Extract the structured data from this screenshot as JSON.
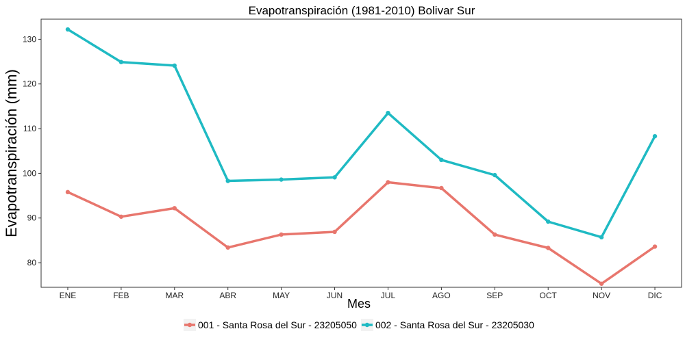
{
  "chart_data": {
    "type": "line",
    "title": "Evapotranspiración (1981-2010)  Bolivar Sur",
    "xlabel": "Mes",
    "ylabel": "Evapotranspiración  (mm)",
    "categories": [
      "ENE",
      "FEB",
      "MAR",
      "ABR",
      "MAY",
      "JUN",
      "JUL",
      "AGO",
      "SEP",
      "OCT",
      "NOV",
      "DIC"
    ],
    "ylim": [
      74.5,
      134.5
    ],
    "yticks": [
      80,
      90,
      100,
      110,
      120,
      130
    ],
    "grid": false,
    "legend_position": "bottom",
    "series": [
      {
        "name": "001 - Santa Rosa del Sur - 23205050",
        "color": "#e8766d",
        "values": [
          95.8,
          90.3,
          92.2,
          83.4,
          86.3,
          86.9,
          98.0,
          96.7,
          86.3,
          83.3,
          75.3,
          83.6
        ]
      },
      {
        "name": "002 - Santa Rosa del Sur - 23205030",
        "color": "#1fbac3",
        "values": [
          132.2,
          124.9,
          124.1,
          98.3,
          98.6,
          99.1,
          113.5,
          103.0,
          99.6,
          89.2,
          85.7,
          108.3
        ]
      }
    ]
  }
}
